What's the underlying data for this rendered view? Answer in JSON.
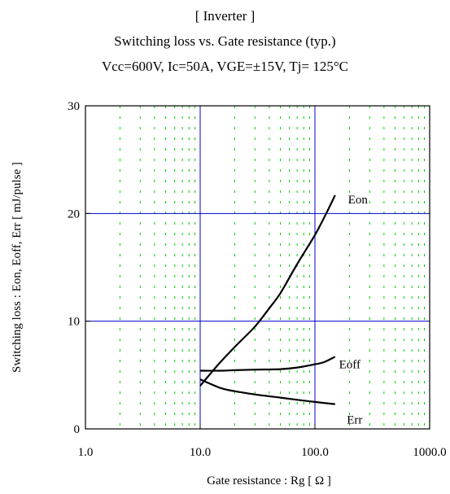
{
  "chart_data": {
    "type": "line",
    "title": "[ Inverter ]",
    "subtitle": "Switching loss  vs.  Gate resistance (typ.)",
    "conditions": "Vcc=600V, Ic=50A, VGE=±15V, Tj= 125°C",
    "xlabel": "Gate resistance : Rg [ Ω ]",
    "ylabel": "Switching loss : Eon, Eoff, Err  [ mJ/pulse ]",
    "xscale": "log",
    "xlim": [
      1,
      1000
    ],
    "ylim": [
      0,
      30
    ],
    "xticks": [
      1,
      10,
      100,
      1000
    ],
    "xtick_labels": [
      "1.0",
      "10.0",
      "100.0",
      "1000.0"
    ],
    "yticks": [
      0,
      10,
      20,
      30
    ],
    "ytick_labels": [
      "0",
      "10",
      "20",
      "30"
    ],
    "grid": true,
    "series": [
      {
        "name": "Eon",
        "x": [
          10,
          12,
          15,
          20,
          30,
          40,
          50,
          70,
          100,
          120,
          150
        ],
        "y": [
          4.0,
          5.0,
          6.2,
          7.6,
          9.5,
          11.2,
          12.6,
          15.3,
          18.0,
          19.6,
          21.7
        ]
      },
      {
        "name": "Eoff",
        "x": [
          10,
          15,
          20,
          30,
          50,
          70,
          100,
          120,
          150
        ],
        "y": [
          5.4,
          5.4,
          5.45,
          5.5,
          5.55,
          5.7,
          6.0,
          6.2,
          6.7
        ]
      },
      {
        "name": "Err",
        "x": [
          10,
          15,
          20,
          30,
          50,
          70,
          100,
          150
        ],
        "y": [
          4.6,
          3.8,
          3.5,
          3.2,
          2.9,
          2.7,
          2.5,
          2.3
        ]
      }
    ],
    "colors": {
      "curve": "#000000",
      "major_grid": "#0000cc",
      "minor_grid": "#00cc00",
      "axis": "#000000"
    }
  }
}
